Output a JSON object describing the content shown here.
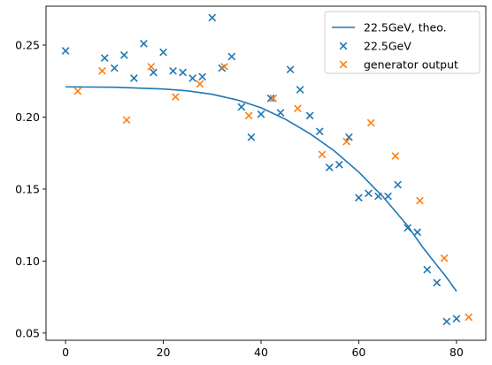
{
  "chart_data": {
    "type": "scatter",
    "title": "",
    "xlabel": "",
    "ylabel": "",
    "xlim": [
      -4,
      86
    ],
    "ylim": [
      0.045,
      0.277
    ],
    "xticks": [
      0,
      20,
      40,
      60,
      80
    ],
    "xtick_labels": [
      "0",
      "20",
      "40",
      "60",
      "80"
    ],
    "yticks": [
      0.05,
      0.1,
      0.15,
      0.2,
      0.25
    ],
    "ytick_labels": [
      "0.05",
      "0.10",
      "0.15",
      "0.20",
      "0.25"
    ],
    "grid": false,
    "legend_position": "top-right",
    "series": [
      {
        "name": "22.5GeV, theo.",
        "kind": "line",
        "color": "#1f77b4",
        "x": [
          0,
          10,
          20,
          25,
          30,
          35,
          40,
          45,
          50,
          55,
          60,
          65,
          70,
          73,
          76,
          78,
          80
        ],
        "y": [
          0.221,
          0.2207,
          0.2195,
          0.2182,
          0.2158,
          0.212,
          0.2065,
          0.1985,
          0.1885,
          0.1765,
          0.1618,
          0.1445,
          0.1245,
          0.11,
          0.097,
          0.0885,
          0.079
        ]
      },
      {
        "name": "22.5GeV",
        "kind": "scatter",
        "marker": "x",
        "color": "#1f77b4",
        "x": [
          0,
          8,
          10,
          12,
          14,
          16,
          18,
          20,
          22,
          24,
          26,
          28,
          30,
          32,
          34,
          36,
          38,
          40,
          42,
          44,
          46,
          48,
          50,
          52,
          54,
          56,
          58,
          60,
          62,
          64,
          66,
          68,
          70,
          72,
          74,
          76,
          78,
          80
        ],
        "y": [
          0.246,
          0.241,
          0.234,
          0.243,
          0.227,
          0.251,
          0.231,
          0.245,
          0.232,
          0.231,
          0.227,
          0.228,
          0.269,
          0.234,
          0.242,
          0.207,
          0.186,
          0.202,
          0.213,
          0.203,
          0.233,
          0.219,
          0.201,
          0.19,
          0.165,
          0.167,
          0.186,
          0.144,
          0.147,
          0.145,
          0.145,
          0.153,
          0.123,
          0.12,
          0.094,
          0.085,
          0.058,
          0.06
        ]
      },
      {
        "name": "generator output",
        "kind": "scatter",
        "marker": "x",
        "color": "#ff7f0e",
        "x": [
          2.5,
          7.5,
          12.5,
          17.5,
          22.5,
          27.5,
          32.5,
          37.5,
          42.5,
          47.5,
          52.5,
          57.5,
          62.5,
          67.5,
          72.5,
          77.5,
          82.5
        ],
        "y": [
          0.218,
          0.232,
          0.198,
          0.235,
          0.214,
          0.223,
          0.235,
          0.201,
          0.213,
          0.206,
          0.174,
          0.183,
          0.196,
          0.173,
          0.142,
          0.102,
          0.061
        ]
      }
    ]
  }
}
